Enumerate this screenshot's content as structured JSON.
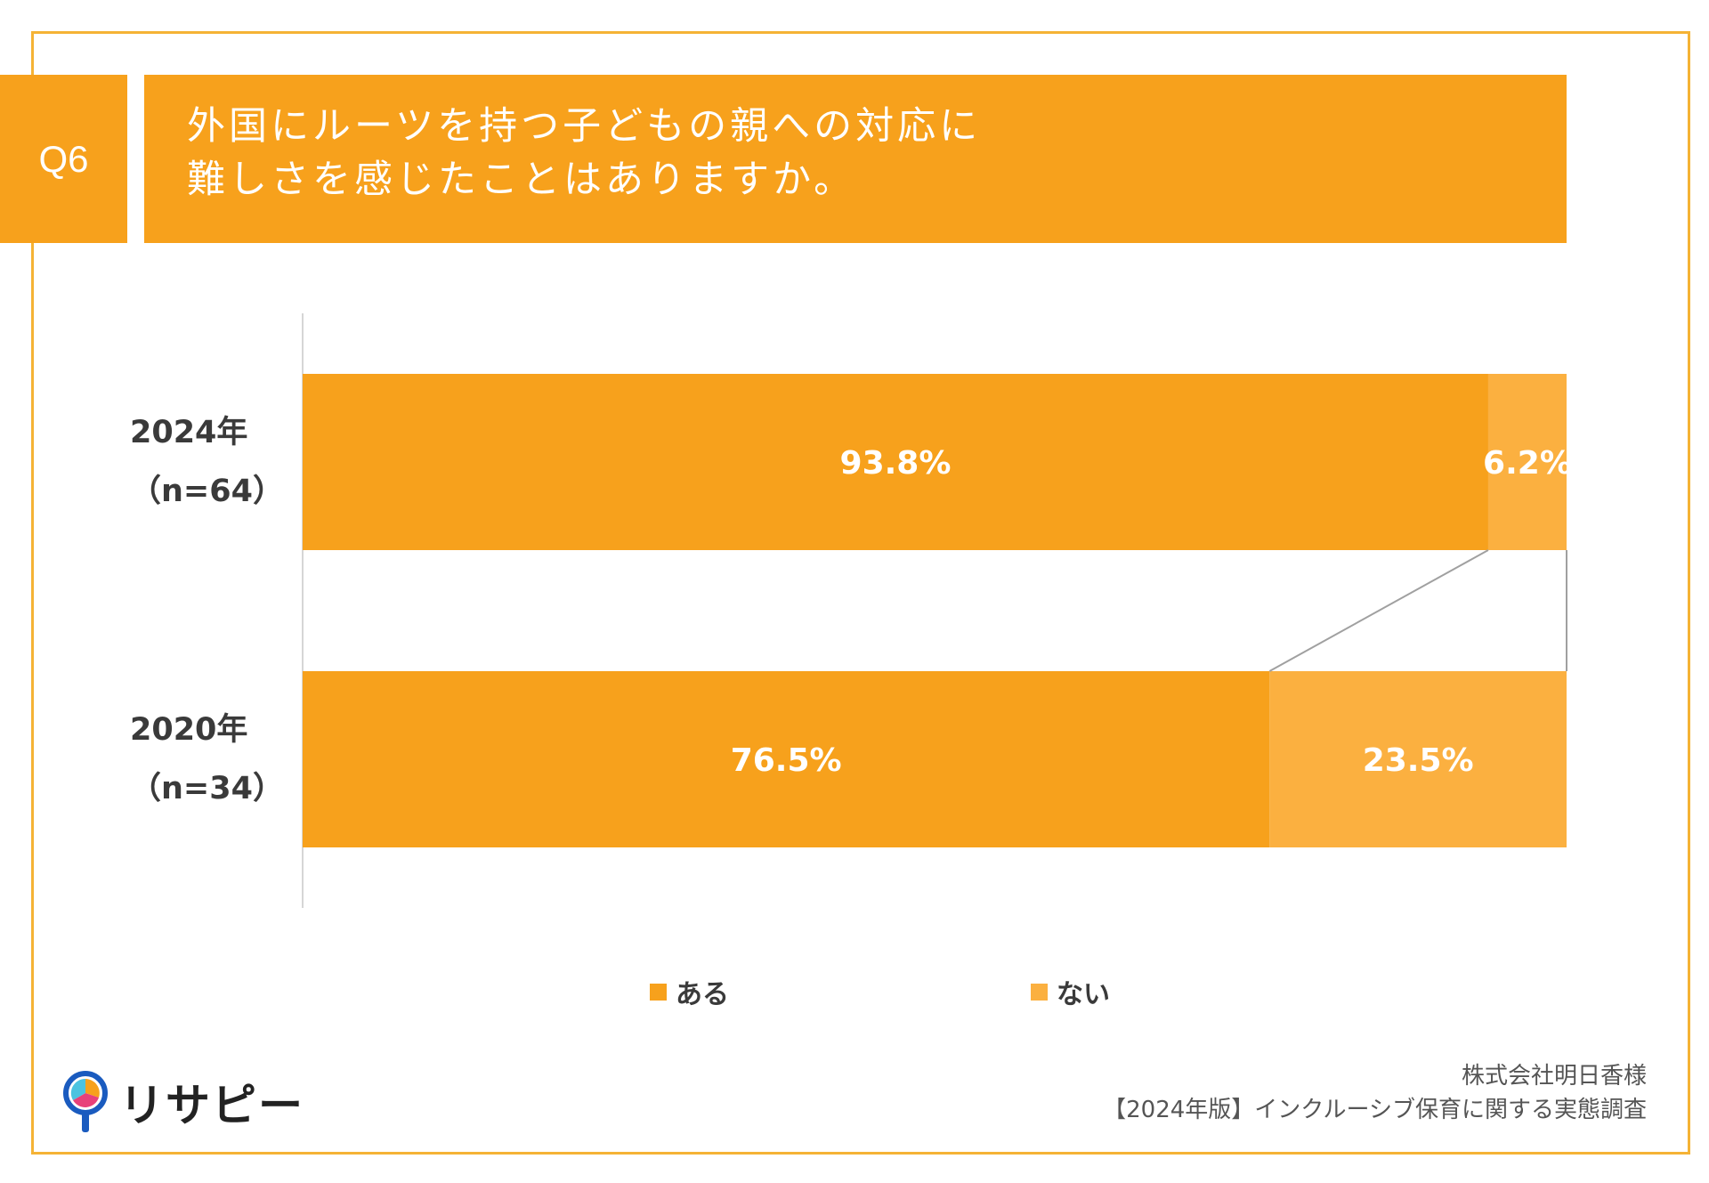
{
  "question": {
    "number": "Q6",
    "title_line1": "外国にルーツを持つ子どもの親への対応に",
    "title_line2": "難しさを感じたことはありますか。"
  },
  "chart_data": {
    "type": "bar",
    "orientation": "horizontal",
    "stacked": true,
    "value_format": "percent",
    "categories": [
      {
        "label": "2024年",
        "n_label": "（n=64）"
      },
      {
        "label": "2020年",
        "n_label": "（n=34）"
      }
    ],
    "series": [
      {
        "name": "ある",
        "values": [
          93.8,
          76.5
        ],
        "labels": [
          "93.8%",
          "76.5%"
        ],
        "color": "#f7a11c"
      },
      {
        "name": "ない",
        "values": [
          6.2,
          23.5
        ],
        "labels": [
          "6.2%",
          "23.5%"
        ],
        "color": "#fbb040"
      }
    ],
    "xlim": [
      0,
      100
    ],
    "grid": false,
    "legend_position": "bottom",
    "series_lines": true
  },
  "legend": {
    "items": [
      {
        "label": "ある",
        "color": "#f7a11c"
      },
      {
        "label": "ない",
        "color": "#fbb040"
      }
    ]
  },
  "logo": {
    "text": "リサピー",
    "icon": "magnifier-pie-icon"
  },
  "source": {
    "line1": "株式会社明日香様",
    "line2": "【2024年版】インクルーシブ保育に関する実態調査"
  },
  "colors": {
    "accent": "#f7a11c",
    "frame": "#f5b335",
    "secondary": "#fbb040"
  }
}
